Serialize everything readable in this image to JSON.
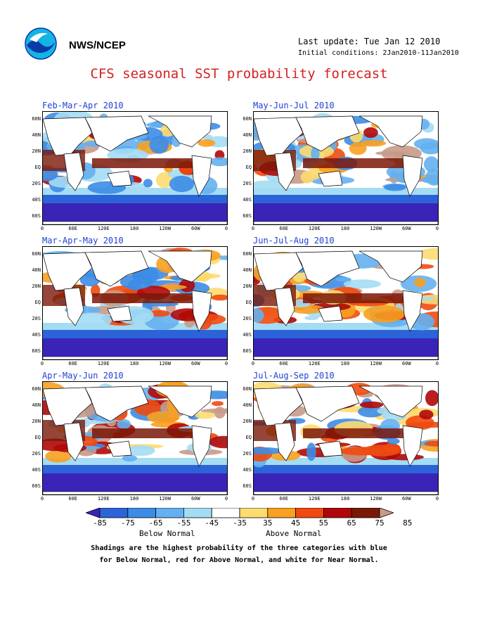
{
  "header": {
    "agency": "NWS/NCEP",
    "last_update": "Last update: Tue Jan 12 2010",
    "initial_conditions": "Initial conditions: 2Jan2010-11Jan2010",
    "title": "CFS seasonal SST probability forecast"
  },
  "panels": [
    {
      "title": "Feb-Mar-Apr 2010"
    },
    {
      "title": "May-Jun-Jul 2010"
    },
    {
      "title": "Mar-Apr-May 2010"
    },
    {
      "title": "Jun-Jul-Aug 2010"
    },
    {
      "title": "Apr-May-Jun 2010"
    },
    {
      "title": "Jul-Aug-Sep 2010"
    }
  ],
  "axes": {
    "lat_labels": [
      "60N",
      "40N",
      "20N",
      "EQ",
      "20S",
      "40S",
      "60S"
    ],
    "lon_labels": [
      "0",
      "60E",
      "120E",
      "180",
      "120W",
      "60W",
      "0"
    ]
  },
  "colorbar": {
    "ticks": [
      "-85",
      "-75",
      "-65",
      "-55",
      "-45",
      "-35",
      "35",
      "45",
      "55",
      "65",
      "75",
      "85"
    ],
    "colors": [
      "#3a24b8",
      "#2c64d8",
      "#3c8ce6",
      "#64b0f0",
      "#a4dcf4",
      "#ffffff",
      "#fcdc70",
      "#f8a020",
      "#f04a10",
      "#b00808",
      "#7a1808",
      "#c89a88"
    ],
    "below_label": "Below Normal",
    "above_label": "Above Normal"
  },
  "footnote": {
    "line1": "Shadings are the highest probability of the three categories with blue",
    "line2": "for Below Normal, red for Above Normal, and white for Near Normal."
  }
}
